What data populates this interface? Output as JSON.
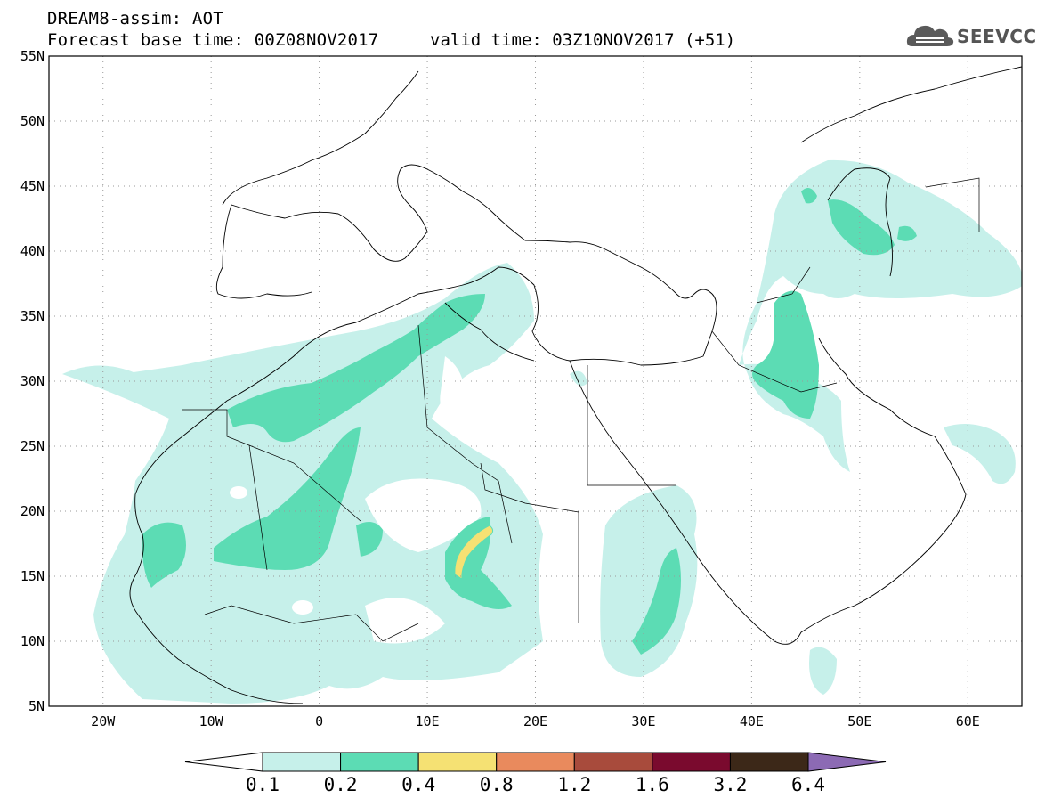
{
  "title": {
    "line1": "DREAM8-assim: AOT",
    "line2": "Forecast base time: 00Z08NOV2017",
    "valid": "valid time: 03Z10NOV2017 (+51)"
  },
  "logo": {
    "text": "SEEVCCC",
    "icon": "cloud-icon"
  },
  "axes": {
    "lat_labels": [
      "55N",
      "50N",
      "45N",
      "40N",
      "35N",
      "30N",
      "25N",
      "20N",
      "15N",
      "10N",
      "5N"
    ],
    "lon_labels": [
      "20W",
      "10W",
      "0",
      "10E",
      "20E",
      "30E",
      "40E",
      "50E",
      "60E"
    ],
    "lon_range": [
      -25,
      65
    ],
    "lat_range": [
      5,
      55
    ],
    "grid": "dotted"
  },
  "colorbar": {
    "labels": [
      "0.1",
      "0.2",
      "0.4",
      "0.8",
      "1.2",
      "1.6",
      "3.2",
      "6.4"
    ],
    "colors": [
      "#ffffff",
      "#c6f0ea",
      "#5cdcb4",
      "#f5e173",
      "#e98a5d",
      "#a84b3c",
      "#7a0a2e",
      "#3c2818",
      "#8c6ab4"
    ]
  },
  "colors": {
    "level1": "#c6f0ea",
    "level2": "#5cdcb4",
    "level3": "#f5e173",
    "border": "#000000",
    "grid": "#9a9a9a"
  }
}
